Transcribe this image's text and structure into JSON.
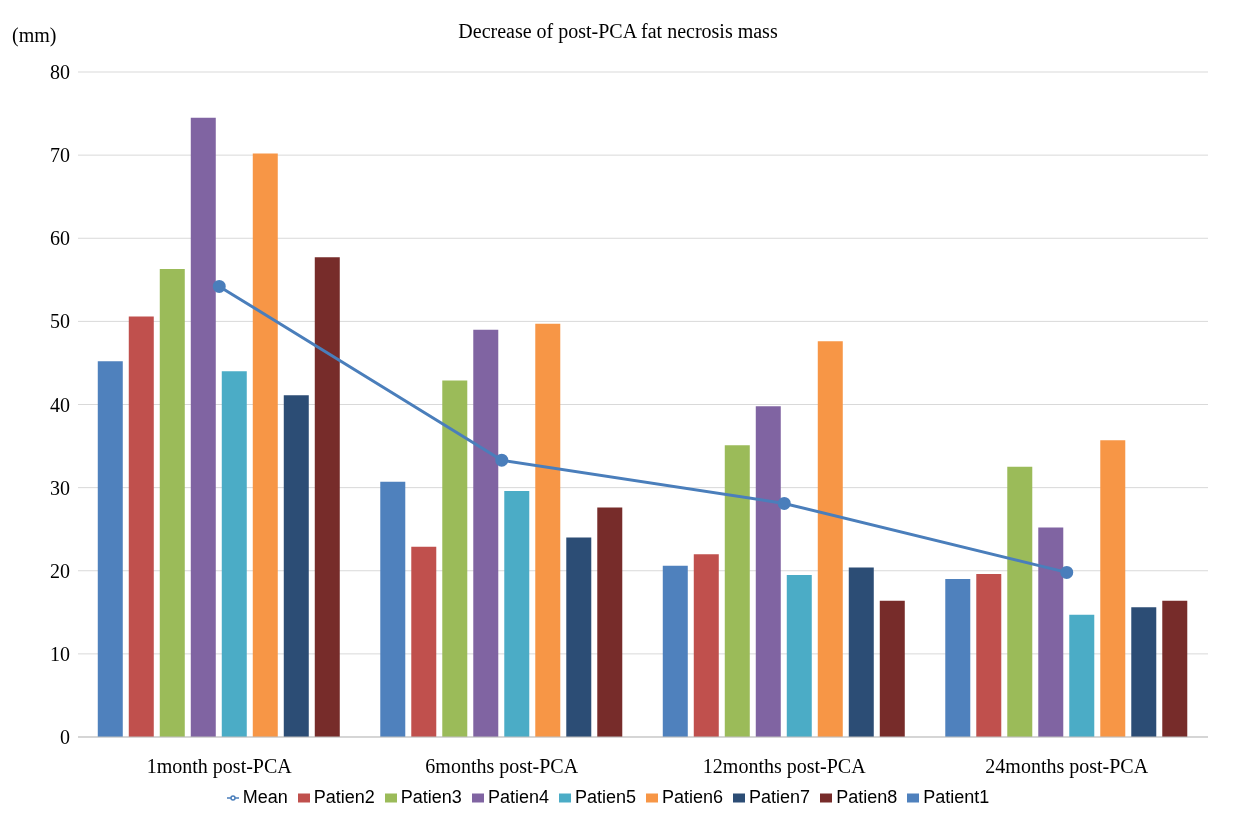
{
  "chart_data": {
    "type": "bar",
    "title": "Decrease of post-PCA fat necrosis mass",
    "ylabel": "(mm)",
    "categories": [
      "1month post-PCA",
      "6months post-PCA",
      "12months post-PCA",
      "24months post-PCA"
    ],
    "series": [
      {
        "name": "Patient1",
        "color": "#4f81bd",
        "values": [
          45.2,
          30.7,
          20.6,
          19.0
        ]
      },
      {
        "name": "Patien2",
        "color": "#c0504d",
        "values": [
          50.6,
          22.9,
          22.0,
          19.6
        ]
      },
      {
        "name": "Patien3",
        "color": "#9bbb59",
        "values": [
          56.3,
          42.9,
          35.1,
          32.5
        ]
      },
      {
        "name": "Patien4",
        "color": "#8064a2",
        "values": [
          74.5,
          49.0,
          39.8,
          25.2
        ]
      },
      {
        "name": "Patien5",
        "color": "#4bacc6",
        "values": [
          44.0,
          29.6,
          19.5,
          14.7
        ]
      },
      {
        "name": "Patien6",
        "color": "#f79646",
        "values": [
          70.2,
          49.7,
          47.6,
          35.7
        ]
      },
      {
        "name": "Patien7",
        "color": "#2c4d75",
        "values": [
          41.1,
          24.0,
          20.4,
          15.6
        ]
      },
      {
        "name": "Patien8",
        "color": "#772c2a",
        "values": [
          57.7,
          27.6,
          16.4,
          16.4
        ]
      },
      {
        "name": "Mean",
        "type": "line",
        "color": "#4a7ebb",
        "marker": "circle",
        "values": [
          54.2,
          33.3,
          28.1,
          19.8
        ]
      }
    ],
    "ylim": [
      0,
      80
    ],
    "yticks": [
      0,
      10,
      20,
      30,
      40,
      50,
      60,
      70,
      80
    ],
    "grid": "y",
    "legend": "bottom"
  }
}
